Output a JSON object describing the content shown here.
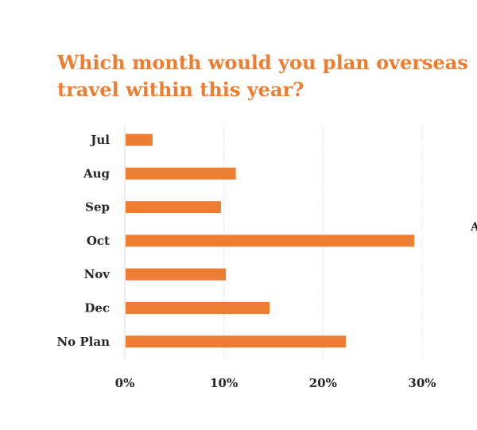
{
  "chart_data": {
    "type": "bar",
    "orientation": "horizontal",
    "title_lines": [
      "Which month would you plan overseas",
      "travel within this year?"
    ],
    "categories": [
      "Jul",
      "Aug",
      "Sep",
      "Oct",
      "Nov",
      "Dec",
      "No Plan"
    ],
    "values": [
      2.8,
      11.2,
      9.7,
      29.2,
      10.2,
      14.6,
      22.3
    ],
    "value_unit": "%",
    "xlim": [
      0,
      30
    ],
    "x_ticks": [
      0,
      10,
      20,
      30
    ],
    "x_tick_labels": [
      "0%",
      "10%",
      "20%",
      "30%"
    ],
    "grid": "vertical dotted",
    "bar_color": "#ED7D31",
    "title_color": "#ED7D31"
  },
  "edge_fragment": "A"
}
